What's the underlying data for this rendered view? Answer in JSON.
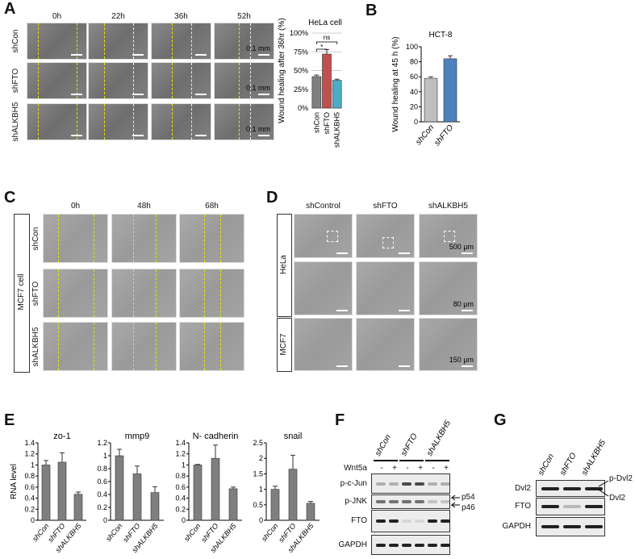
{
  "panels": {
    "A": "A",
    "B": "B",
    "C": "C",
    "D": "D",
    "E": "E",
    "F": "F",
    "G": "G"
  },
  "panelA": {
    "timepoints": [
      "0h",
      "22h",
      "36h",
      "52h"
    ],
    "rows": [
      "shCon",
      "shFTO",
      "shALKBH5"
    ],
    "scale": "0.1 mm"
  },
  "panelC": {
    "timepoints": [
      "0h",
      "48h",
      "68h"
    ],
    "rows": [
      "shCon",
      "shFTO",
      "shALKBH5"
    ],
    "cell_line": "MCF7 cell"
  },
  "panelD": {
    "columns": [
      "shControl",
      "shFTO",
      "shALKBH5"
    ],
    "groups": [
      "HeLa",
      "MCF7"
    ],
    "scales": [
      "500 µm",
      "80 µm",
      "150 µm"
    ]
  },
  "panelF": {
    "lanes": [
      "shCon",
      "shFTO",
      "shALKBH5"
    ],
    "wnt5a_label": "Wnt5a",
    "wnt5a": [
      "-",
      "+",
      "-",
      "+",
      "-",
      "+"
    ],
    "blots": [
      "p-c-Jun",
      "p-JNK",
      "FTO",
      "GAPDH"
    ],
    "arrows": [
      "p54",
      "p46"
    ]
  },
  "panelG": {
    "lanes": [
      "shCon",
      "shFTO",
      "shALKBH5"
    ],
    "blots": [
      "Dvl2",
      "FTO",
      "GAPDH"
    ],
    "annotations": [
      "p-Dvl2",
      "Dvl2"
    ]
  },
  "chart_data": [
    {
      "id": "A",
      "type": "bar",
      "title": "HeLa cell",
      "ylabel": "Wound healing after 36hr (%)",
      "categories": [
        "shCon",
        "shFTO",
        "shALKBH5"
      ],
      "values": [
        42,
        72,
        37
      ],
      "errors": [
        2,
        6,
        1.5
      ],
      "colors": [
        "#7f7f7f",
        "#c0504d",
        "#4bacc6"
      ],
      "ylim": [
        0,
        100
      ],
      "yticks": [
        "0%",
        "25%",
        "50%",
        "75%",
        "100%"
      ],
      "ytickvals": [
        0,
        25,
        50,
        75,
        100
      ],
      "grid": true,
      "significance": [
        "*",
        "ns"
      ]
    },
    {
      "id": "B",
      "type": "bar",
      "title": "HCT-8",
      "ylabel": "Wound healing at 45 h (%)",
      "categories": [
        "shCon",
        "shFTO"
      ],
      "values": [
        58,
        84
      ],
      "errors": [
        2,
        4
      ],
      "colors": [
        "#bfbfbf",
        "#4f81bd"
      ],
      "ylim": [
        0,
        100
      ],
      "yticks": [
        "0",
        "20",
        "40",
        "60",
        "80",
        "100"
      ],
      "ytickvals": [
        0,
        20,
        40,
        60,
        80,
        100
      ]
    },
    {
      "id": "E1",
      "type": "bar",
      "title": "zo-1",
      "ylabel": "RNA level",
      "categories": [
        "shCon",
        "shFTO",
        "shALKBH5"
      ],
      "values": [
        1,
        1.05,
        0.47
      ],
      "errors": [
        0.08,
        0.17,
        0.04
      ],
      "colors": [
        "#7f7f7f",
        "#7f7f7f",
        "#7f7f7f"
      ],
      "ylim": [
        0,
        1.4
      ],
      "yticks": [
        "0",
        "0.2",
        "0.4",
        "0.6",
        "0.8",
        "1",
        "1.2",
        "1.4"
      ],
      "ytickvals": [
        0,
        0.2,
        0.4,
        0.6,
        0.8,
        1,
        1.2,
        1.4
      ]
    },
    {
      "id": "E2",
      "type": "bar",
      "title": "mmp9",
      "ylabel": "",
      "categories": [
        "shCon",
        "shFTO",
        "shALKBH5"
      ],
      "values": [
        1,
        0.72,
        0.43
      ],
      "errors": [
        0.1,
        0.12,
        0.09
      ],
      "colors": [
        "#7f7f7f",
        "#7f7f7f",
        "#7f7f7f"
      ],
      "ylim": [
        0,
        1.2
      ],
      "yticks": [
        "0",
        "0.2",
        "0.4",
        "0.6",
        "0.8",
        "1",
        "1.2"
      ],
      "ytickvals": [
        0,
        0.2,
        0.4,
        0.6,
        0.8,
        1,
        1.2
      ]
    },
    {
      "id": "E3",
      "type": "bar",
      "title": "N- cadherin",
      "ylabel": "",
      "categories": [
        "shCon",
        "shFTO",
        "shALKBH5"
      ],
      "values": [
        1,
        1.12,
        0.57
      ],
      "errors": [
        0.01,
        0.24,
        0.03
      ],
      "colors": [
        "#7f7f7f",
        "#7f7f7f",
        "#7f7f7f"
      ],
      "ylim": [
        0,
        1.4
      ],
      "yticks": [
        "0",
        "0.2",
        "0.4",
        "0.6",
        "0.8",
        "1",
        "1.2",
        "1.4"
      ],
      "ytickvals": [
        0,
        0.2,
        0.4,
        0.6,
        0.8,
        1,
        1.2,
        1.4
      ]
    },
    {
      "id": "E4",
      "type": "bar",
      "title": "snail",
      "ylabel": "",
      "categories": [
        "shCon",
        "shFTO",
        "shALKBH5"
      ],
      "values": [
        1,
        1.65,
        0.55
      ],
      "errors": [
        0.1,
        0.45,
        0.06
      ],
      "colors": [
        "#7f7f7f",
        "#7f7f7f",
        "#7f7f7f"
      ],
      "ylim": [
        0,
        2.5
      ],
      "yticks": [
        "0",
        "0.5",
        "1",
        "1.5",
        "2",
        "2.5"
      ],
      "ytickvals": [
        0,
        0.5,
        1,
        1.5,
        2,
        2.5
      ]
    }
  ]
}
